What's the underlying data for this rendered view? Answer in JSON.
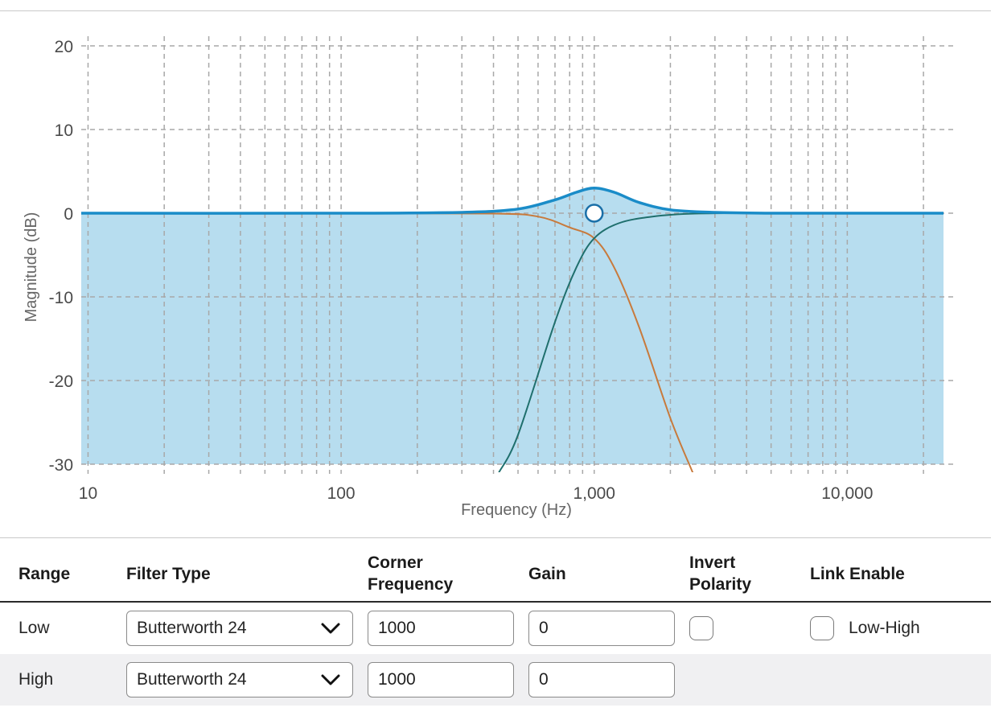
{
  "chart_data": {
    "type": "line",
    "xlabel": "Frequency (Hz)",
    "ylabel": "Magnitude (dB)",
    "x_scale": "log",
    "xlim": [
      9.4,
      24000
    ],
    "ylim": [
      -30,
      20
    ],
    "x_ticks": [
      10,
      100,
      1000,
      10000
    ],
    "x_tick_labels": [
      "10",
      "100",
      "1,000",
      "10,000"
    ],
    "y_ticks": [
      20,
      10,
      0,
      -10,
      -20,
      -30
    ],
    "y_tick_labels": [
      "20",
      "10",
      "0",
      "-10",
      "-20",
      "-30"
    ],
    "grid": true,
    "colors": {
      "sum": "#1a8cc8",
      "sum_fill": "#b7ddef",
      "lowpass": "#c87a3c",
      "highpass": "#1f6f6d",
      "grid": "#a8a8a8"
    },
    "series": [
      {
        "role": "sum",
        "x": [
          9.4,
          100,
          300,
          500,
          700,
          850,
          1000,
          1200,
          1500,
          2000,
          3000,
          5000,
          10000,
          24000
        ],
        "y": [
          0,
          0,
          0.1,
          0.5,
          1.6,
          2.5,
          3.0,
          2.5,
          1.3,
          0.4,
          0.1,
          0,
          0,
          0
        ]
      },
      {
        "role": "lowpass",
        "x": [
          9.4,
          100,
          400,
          600,
          800,
          1000,
          1200,
          1500,
          2000,
          2450
        ],
        "y": [
          0,
          0,
          -0.05,
          -0.4,
          -1.7,
          -3.0,
          -6.5,
          -13.5,
          -24.5,
          -31
        ]
      },
      {
        "role": "highpass",
        "x": [
          420,
          500,
          700,
          850,
          1000,
          1250,
          1700,
          2500,
          5000,
          24000
        ],
        "y": [
          -31,
          -26.5,
          -13,
          -6.5,
          -3.0,
          -1.2,
          -0.4,
          -0.05,
          0,
          0
        ]
      }
    ],
    "handle": {
      "x": 1000,
      "y": 0
    }
  },
  "table": {
    "headers": {
      "range": "Range",
      "filter_type": "Filter Type",
      "corner_line1": "Corner",
      "corner_line2": "Frequency",
      "gain": "Gain",
      "invert_line1": "Invert",
      "invert_line2": "Polarity",
      "link": "Link Enable"
    },
    "rows": [
      {
        "range": "Low",
        "filter_type": "Butterworth 24",
        "corner_frequency": "1000",
        "gain": "0",
        "invert_polarity": false,
        "link_enabled": false,
        "link_label": "Low-High"
      },
      {
        "range": "High",
        "filter_type": "Butterworth 24",
        "corner_frequency": "1000",
        "gain": "0"
      }
    ]
  }
}
